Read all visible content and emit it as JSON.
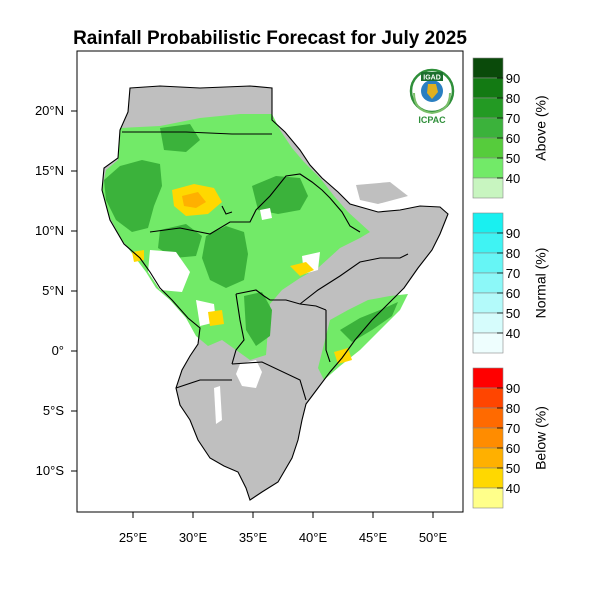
{
  "title": "Rainfall Probabilistic Forecast for July 2025",
  "logo": {
    "top_text": "IGAD",
    "bottom_text": "ICPAC"
  },
  "map": {
    "lon_ticks": [
      "25°E",
      "30°E",
      "35°E",
      "40°E",
      "45°E",
      "50°E"
    ],
    "lat_ticks": [
      "20°N",
      "15°N",
      "10°N",
      "5°N",
      "0°",
      "5°S",
      "10°S"
    ],
    "no_data_color": "#bfbfbf"
  },
  "legend": {
    "above": {
      "title": "Above (%)",
      "labels": [
        "90",
        "80",
        "70",
        "60",
        "50",
        "40"
      ],
      "colors": [
        "#0a4a0a",
        "#137a13",
        "#239a23",
        "#3bb23b",
        "#56cc3c",
        "#72ea68",
        "#c8f5c0"
      ]
    },
    "normal": {
      "title": "Normal (%)",
      "labels": [
        "90",
        "80",
        "70",
        "60",
        "50",
        "40"
      ],
      "colors": [
        "#19f0f0",
        "#3ff3f3",
        "#66f5f5",
        "#8cf8f8",
        "#b3fafa",
        "#d6fcfc",
        "#eefefe"
      ]
    },
    "below": {
      "title": "Below (%)",
      "labels": [
        "90",
        "80",
        "70",
        "60",
        "50",
        "40"
      ],
      "colors": [
        "#ff0000",
        "#ff4500",
        "#ff6a00",
        "#ff8c00",
        "#ffb000",
        "#ffd800",
        "#ffff8a"
      ]
    }
  }
}
